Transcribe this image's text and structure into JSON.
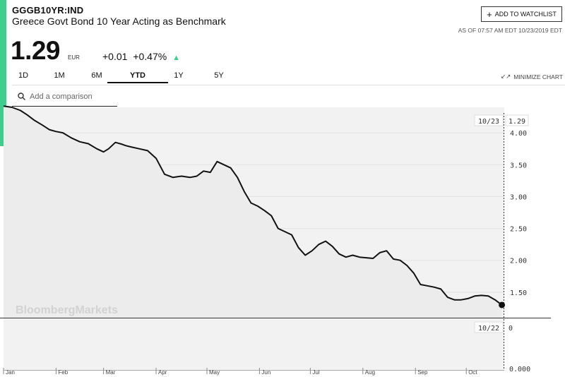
{
  "header": {
    "ticker": "GGGB10YR:IND",
    "name": "Greece Govt Bond 10 Year Acting as Benchmark",
    "watchlist_label": "ADD TO WATCHLIST",
    "as_of": "AS OF 07:57 AM EDT 10/23/2019 EDT"
  },
  "quote": {
    "price": "1.29",
    "currency": "EUR",
    "change": "+0.01",
    "change_pct": "+0.47%",
    "direction_icon": "up-triangle-icon"
  },
  "tabs": [
    {
      "label": "1D",
      "active": false
    },
    {
      "label": "1M",
      "active": false
    },
    {
      "label": "6M",
      "active": false
    },
    {
      "label": "YTD",
      "active": true
    },
    {
      "label": "1Y",
      "active": false
    },
    {
      "label": "5Y",
      "active": false
    }
  ],
  "minimize_label": "MINIMIZE CHART",
  "comparison": {
    "placeholder": "Add a comparison"
  },
  "watermark": "BloombergMarkets",
  "colors": {
    "accent": "#3ecf8e",
    "line": "#111111",
    "fill": "#f2f2f2",
    "grid": "#e3e3e3"
  },
  "chart_data": {
    "type": "line",
    "ylim": [
      1.1,
      4.4
    ],
    "y_ticks": [
      "4.00",
      "3.50",
      "3.00",
      "2.50",
      "2.00",
      "1.50"
    ],
    "x_ticks": [
      "Jan",
      "Feb",
      "Mar",
      "Apr",
      "May",
      "Jun",
      "Jul",
      "Aug",
      "Sep",
      "Oct"
    ],
    "x_tick_days": [
      0,
      31,
      59,
      90,
      120,
      151,
      181,
      212,
      243,
      273
    ],
    "x_range_days": [
      0,
      295
    ],
    "crosshair": {
      "date_label": "10/23",
      "value_label": "1.29"
    },
    "volume_pane": {
      "date_label": "10/22",
      "value_label": "0",
      "bottom_tick": "0.000"
    },
    "series": [
      {
        "x": [
          0,
          5,
          10,
          14,
          18,
          23,
          27,
          31,
          35,
          40,
          45,
          50,
          55,
          59,
          62,
          66,
          70,
          72,
          75,
          80,
          85,
          90,
          95,
          100,
          105,
          110,
          114,
          118,
          122,
          126,
          130,
          134,
          138,
          142,
          146,
          150,
          154,
          158,
          162,
          166,
          170,
          174,
          178,
          182,
          186,
          190,
          194,
          198,
          202,
          206,
          210,
          214,
          218,
          222,
          226,
          230,
          234,
          238,
          242,
          246,
          250,
          254,
          258,
          262,
          266,
          270,
          274,
          278,
          282,
          286,
          290,
          294
        ],
        "values": [
          4.42,
          4.4,
          4.35,
          4.28,
          4.2,
          4.12,
          4.05,
          4.02,
          4.0,
          3.92,
          3.86,
          3.83,
          3.75,
          3.7,
          3.75,
          3.85,
          3.82,
          3.8,
          3.78,
          3.75,
          3.72,
          3.6,
          3.35,
          3.3,
          3.32,
          3.3,
          3.32,
          3.4,
          3.38,
          3.55,
          3.5,
          3.45,
          3.3,
          3.08,
          2.9,
          2.85,
          2.78,
          2.7,
          2.5,
          2.45,
          2.4,
          2.2,
          2.08,
          2.15,
          2.25,
          2.3,
          2.22,
          2.1,
          2.05,
          2.08,
          2.05,
          2.04,
          2.03,
          2.12,
          2.15,
          2.02,
          2.0,
          1.92,
          1.8,
          1.62,
          1.6,
          1.58,
          1.55,
          1.42,
          1.38,
          1.38,
          1.4,
          1.44,
          1.45,
          1.44,
          1.38,
          1.3
        ]
      }
    ]
  }
}
